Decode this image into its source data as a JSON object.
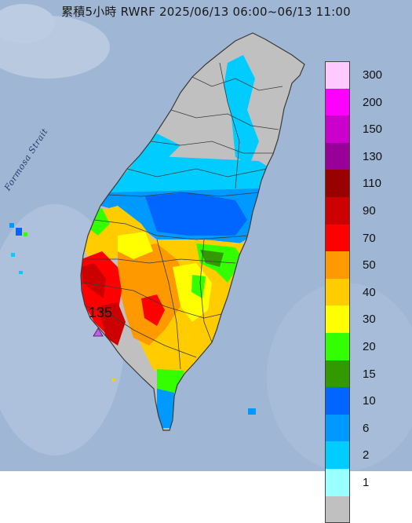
{
  "title": "累積5小時 RWRF 2025/06/13 06:00~06/13 11:00",
  "strait_label": "Formosa Strait",
  "max_station": {
    "value": "135",
    "marker": "triangle-marker-icon",
    "marker_color": "#c060e0"
  },
  "colors": {
    "sea": "#9fb6d4",
    "land_border": "#3a3a3a"
  },
  "legend": [
    {
      "label": "300",
      "color": "#ffc8ff"
    },
    {
      "label": "200",
      "color": "#ff00ff"
    },
    {
      "label": "150",
      "color": "#cc00cc"
    },
    {
      "label": "130",
      "color": "#990099"
    },
    {
      "label": "110",
      "color": "#990000"
    },
    {
      "label": "90",
      "color": "#cc0000"
    },
    {
      "label": "70",
      "color": "#ff0000"
    },
    {
      "label": "50",
      "color": "#ff9900"
    },
    {
      "label": "40",
      "color": "#ffcc00"
    },
    {
      "label": "30",
      "color": "#ffff00"
    },
    {
      "label": "20",
      "color": "#33ff00"
    },
    {
      "label": "15",
      "color": "#339900"
    },
    {
      "label": "10",
      "color": "#0066ff"
    },
    {
      "label": "6",
      "color": "#0099ff"
    },
    {
      "label": "2",
      "color": "#00ccff"
    },
    {
      "label": "1",
      "color": "#99ffff"
    },
    {
      "label": "",
      "color": "#c0c0c0"
    }
  ]
}
